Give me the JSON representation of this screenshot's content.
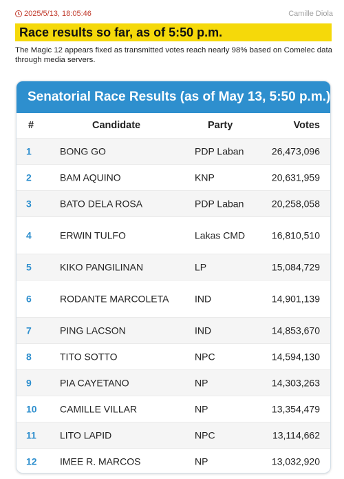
{
  "meta": {
    "timestamp": "2025/5/13, 18:05:46",
    "author": "Camille Diola"
  },
  "headline": "Race results so far, as of 5:50 p.m.",
  "description": "The Magic 12 appears fixed as transmitted votes reach nearly 98% based on Comelec data through media servers.",
  "table": {
    "title": "Senatorial Race Results (as of May 13, 5:50 p.m.)",
    "headers": {
      "rank": "#",
      "candidate": "Candidate",
      "party": "Party",
      "votes": "Votes"
    },
    "rows": [
      {
        "rank": "1",
        "candidate": "BONG GO",
        "party": "PDP Laban",
        "votes": "26,473,096"
      },
      {
        "rank": "2",
        "candidate": "BAM AQUINO",
        "party": "KNP",
        "votes": "20,631,959"
      },
      {
        "rank": "3",
        "candidate": "BATO DELA ROSA",
        "party": "PDP Laban",
        "votes": "20,258,058"
      },
      {
        "rank": "4",
        "candidate": "ERWIN TULFO",
        "party": "Lakas CMD",
        "votes": "16,810,510"
      },
      {
        "rank": "5",
        "candidate": "KIKO PANGILINAN",
        "party": "LP",
        "votes": "15,084,729"
      },
      {
        "rank": "6",
        "candidate": "RODANTE MARCOLETA",
        "party": "IND",
        "votes": "14,901,139"
      },
      {
        "rank": "7",
        "candidate": "PING LACSON",
        "party": "IND",
        "votes": "14,853,670"
      },
      {
        "rank": "8",
        "candidate": "TITO SOTTO",
        "party": "NPC",
        "votes": "14,594,130"
      },
      {
        "rank": "9",
        "candidate": "PIA CAYETANO",
        "party": "NP",
        "votes": "14,303,263"
      },
      {
        "rank": "10",
        "candidate": "CAMILLE VILLAR",
        "party": "NP",
        "votes": "13,354,479"
      },
      {
        "rank": "11",
        "candidate": "LITO LAPID",
        "party": "NPC",
        "votes": "13,114,662"
      },
      {
        "rank": "12",
        "candidate": "IMEE R. MARCOS",
        "party": "NP",
        "votes": "13,032,920"
      }
    ]
  },
  "colors": {
    "accent_blue": "#2e8fce",
    "headline_yellow": "#f5d90a",
    "timestamp_red": "#c0392b"
  }
}
